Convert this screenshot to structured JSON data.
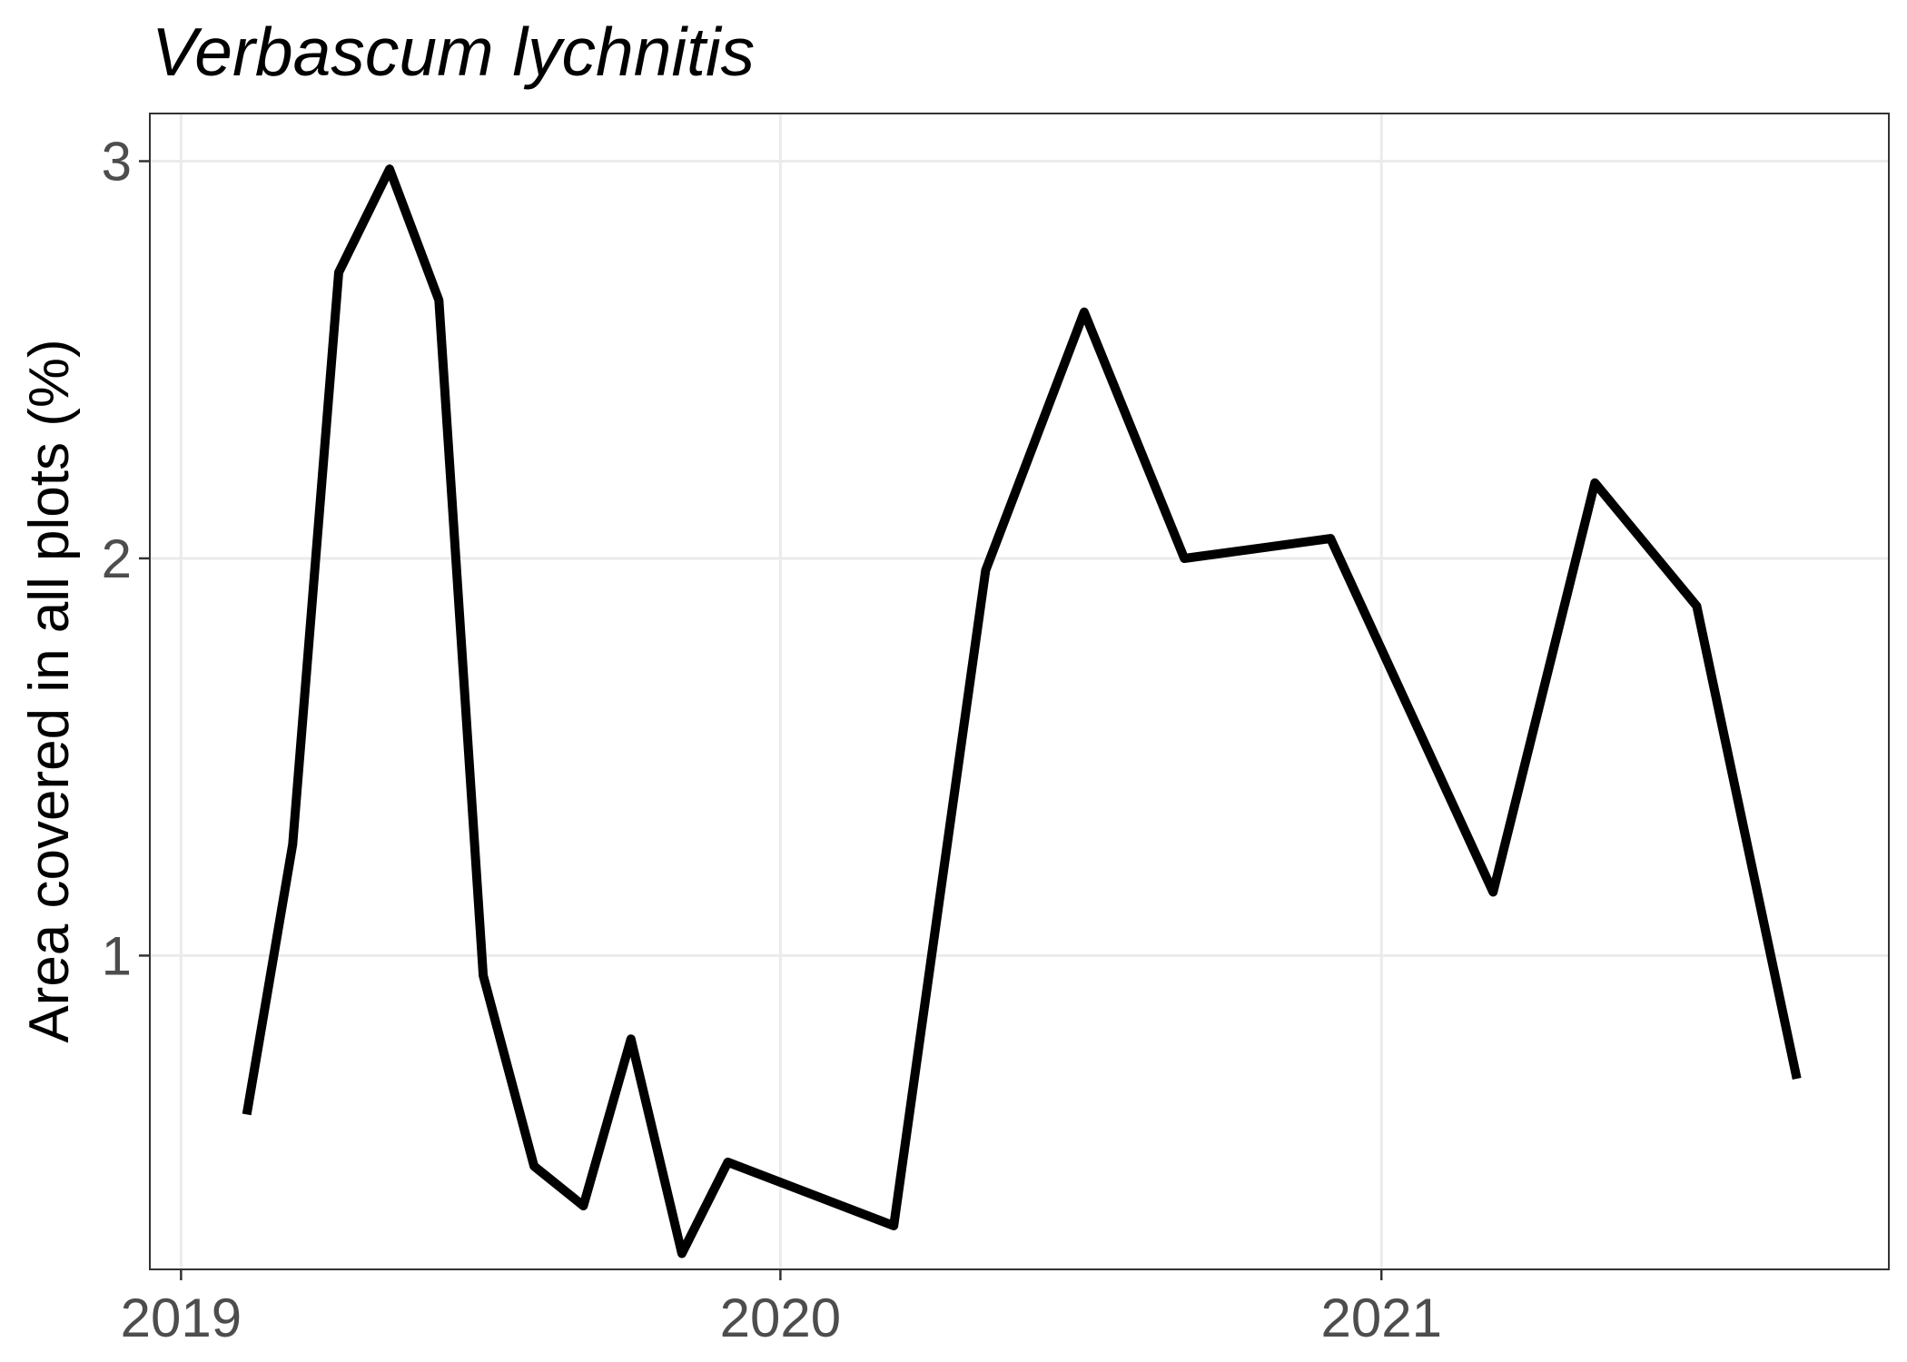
{
  "chart_data": {
    "type": "line",
    "title": "Verbascum lychnitis",
    "xlabel": "",
    "ylabel": "Area covered in all plots (%)",
    "x_ticks": [
      "2019",
      "2020",
      "2021"
    ],
    "y_ticks": [
      "1",
      "2",
      "3"
    ],
    "xlim": [
      "2018-12-13",
      "2021-11-06"
    ],
    "ylim": [
      0.21,
      3.12
    ],
    "grid": true,
    "series": [
      {
        "color": "#000000",
        "points": [
          {
            "x": "2019-02-10",
            "y": 0.6
          },
          {
            "x": "2019-03-10",
            "y": 1.28
          },
          {
            "x": "2019-04-07",
            "y": 2.72
          },
          {
            "x": "2019-05-08",
            "y": 2.98
          },
          {
            "x": "2019-06-07",
            "y": 2.65
          },
          {
            "x": "2019-07-04",
            "y": 0.95
          },
          {
            "x": "2019-08-04",
            "y": 0.47
          },
          {
            "x": "2019-09-03",
            "y": 0.37
          },
          {
            "x": "2019-10-02",
            "y": 0.79
          },
          {
            "x": "2019-11-02",
            "y": 0.25
          },
          {
            "x": "2019-11-30",
            "y": 0.48
          },
          {
            "x": "2020-03-10",
            "y": 0.32
          },
          {
            "x": "2020-05-05",
            "y": 1.97
          },
          {
            "x": "2020-07-04",
            "y": 2.62
          },
          {
            "x": "2020-09-03",
            "y": 2.0
          },
          {
            "x": "2020-12-01",
            "y": 2.05
          },
          {
            "x": "2021-03-10",
            "y": 1.16
          },
          {
            "x": "2021-05-11",
            "y": 2.19
          },
          {
            "x": "2021-07-12",
            "y": 1.88
          },
          {
            "x": "2021-09-11",
            "y": 0.69
          }
        ]
      }
    ]
  }
}
